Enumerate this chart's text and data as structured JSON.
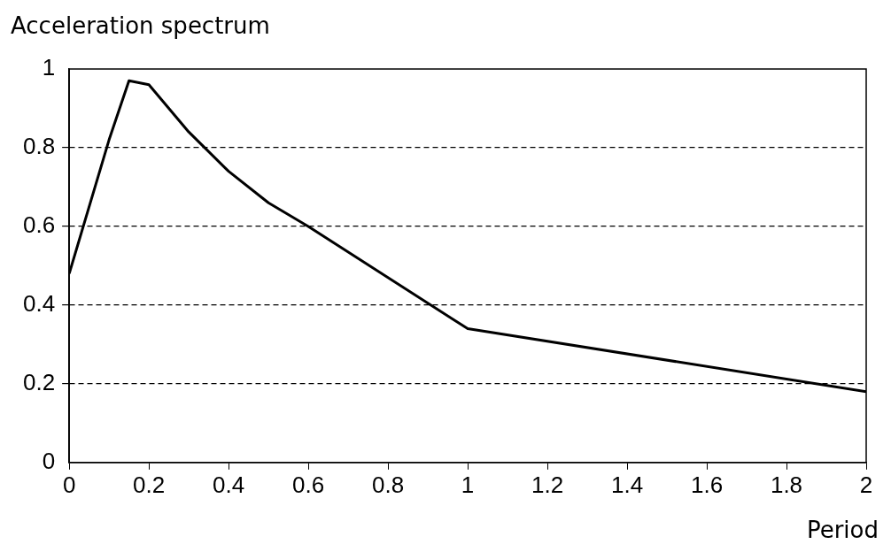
{
  "chart_data": {
    "type": "line",
    "xlabel": "Period",
    "ylabel": "Acceleration spectrum",
    "x": [
      0,
      0.1,
      0.15,
      0.2,
      0.3,
      0.4,
      0.5,
      0.6,
      1,
      2
    ],
    "series": [
      {
        "color": "#000000",
        "values": [
          0.48,
          0.82,
          0.97,
          0.96,
          0.84,
          0.74,
          0.66,
          0.6,
          0.34,
          0.18
        ]
      }
    ],
    "xlim": [
      0,
      2
    ],
    "xticks": [
      0,
      0.2,
      0.4,
      0.6,
      0.8,
      1,
      1.2,
      1.4,
      1.6,
      1.8,
      2
    ],
    "ylim": [
      0,
      1
    ],
    "yticks": [
      0,
      0.2,
      0.4,
      0.6,
      0.8,
      1
    ],
    "grid": "y",
    "legend": false,
    "marker": "none",
    "line_style": "solid"
  }
}
